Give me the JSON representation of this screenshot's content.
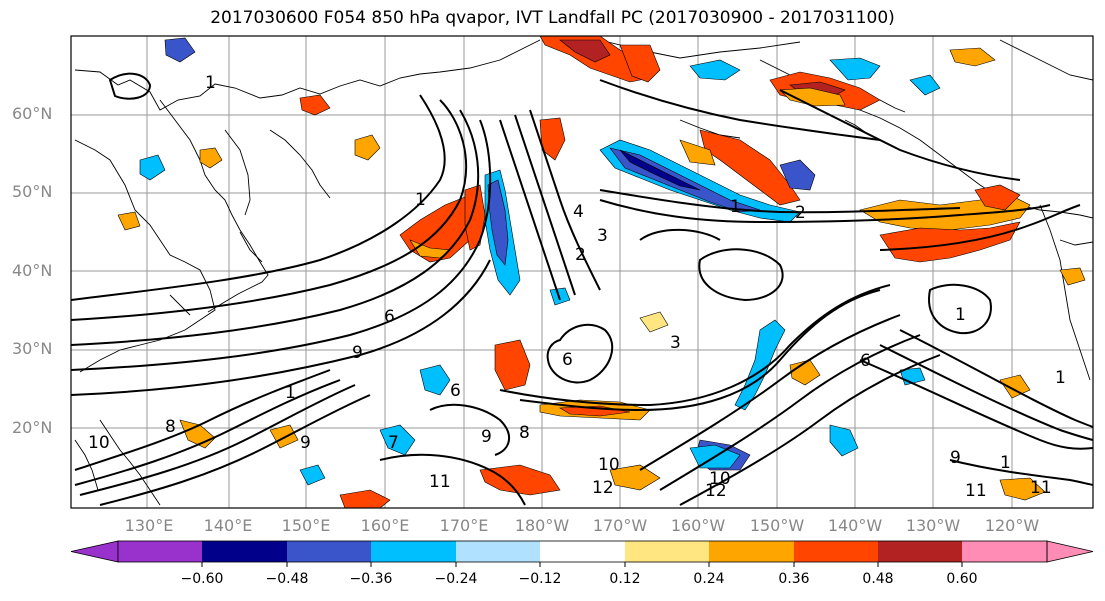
{
  "title": "2017030600 F054 850 hPa qvapor, IVT Landfall PC (2017030900 - 2017031100)",
  "lat_labels": [
    "60°N",
    "50°N",
    "40°N",
    "30°N",
    "20°N"
  ],
  "lon_labels": [
    "130°E",
    "140°E",
    "150°E",
    "160°E",
    "170°E",
    "180°W",
    "170°W",
    "160°W",
    "150°W",
    "140°W",
    "130°W",
    "120°W"
  ],
  "colorbar": {
    "ticks": [
      "−0.60",
      "−0.48",
      "−0.36",
      "−0.24",
      "−0.12",
      "0.12",
      "0.24",
      "0.36",
      "0.48",
      "0.60"
    ],
    "colors": [
      "#9932cc",
      "#00008b",
      "#3a55c9",
      "#00bfff",
      "#b0e2ff",
      "#ffffff",
      "#ffe680",
      "#ffa500",
      "#ff4500",
      "#b22222",
      "#ff8cb4"
    ]
  },
  "contour_labels": [
    "1",
    "1",
    "1",
    "2",
    "3",
    "4",
    "1",
    "2",
    "3",
    "6",
    "6",
    "9",
    "8",
    "9",
    "10",
    "12",
    "11",
    "12",
    "10",
    "11",
    "6",
    "7",
    "1",
    "8",
    "9",
    "1",
    "1",
    "6",
    "11",
    "9",
    "10"
  ]
}
